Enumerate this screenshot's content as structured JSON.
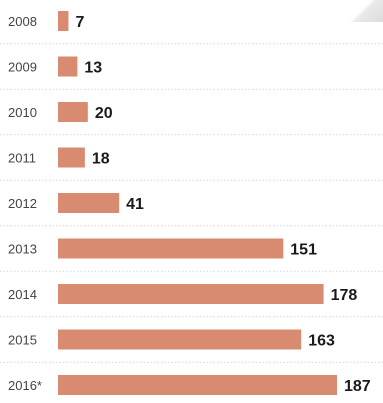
{
  "chart_data": {
    "type": "bar",
    "orientation": "horizontal",
    "categories": [
      "2008",
      "2009",
      "2010",
      "2011",
      "2012",
      "2013",
      "2014",
      "2015",
      "2016*"
    ],
    "values": [
      7,
      13,
      20,
      18,
      41,
      151,
      178,
      163,
      187
    ],
    "value_labels": [
      "7",
      "13",
      "20",
      "18",
      "41",
      "151",
      "178",
      "163",
      "187"
    ],
    "title": "",
    "xlabel": "",
    "ylabel": "",
    "xlim": [
      0,
      187
    ],
    "grid": false,
    "legend": "none",
    "bar_color": "#d98b72"
  }
}
